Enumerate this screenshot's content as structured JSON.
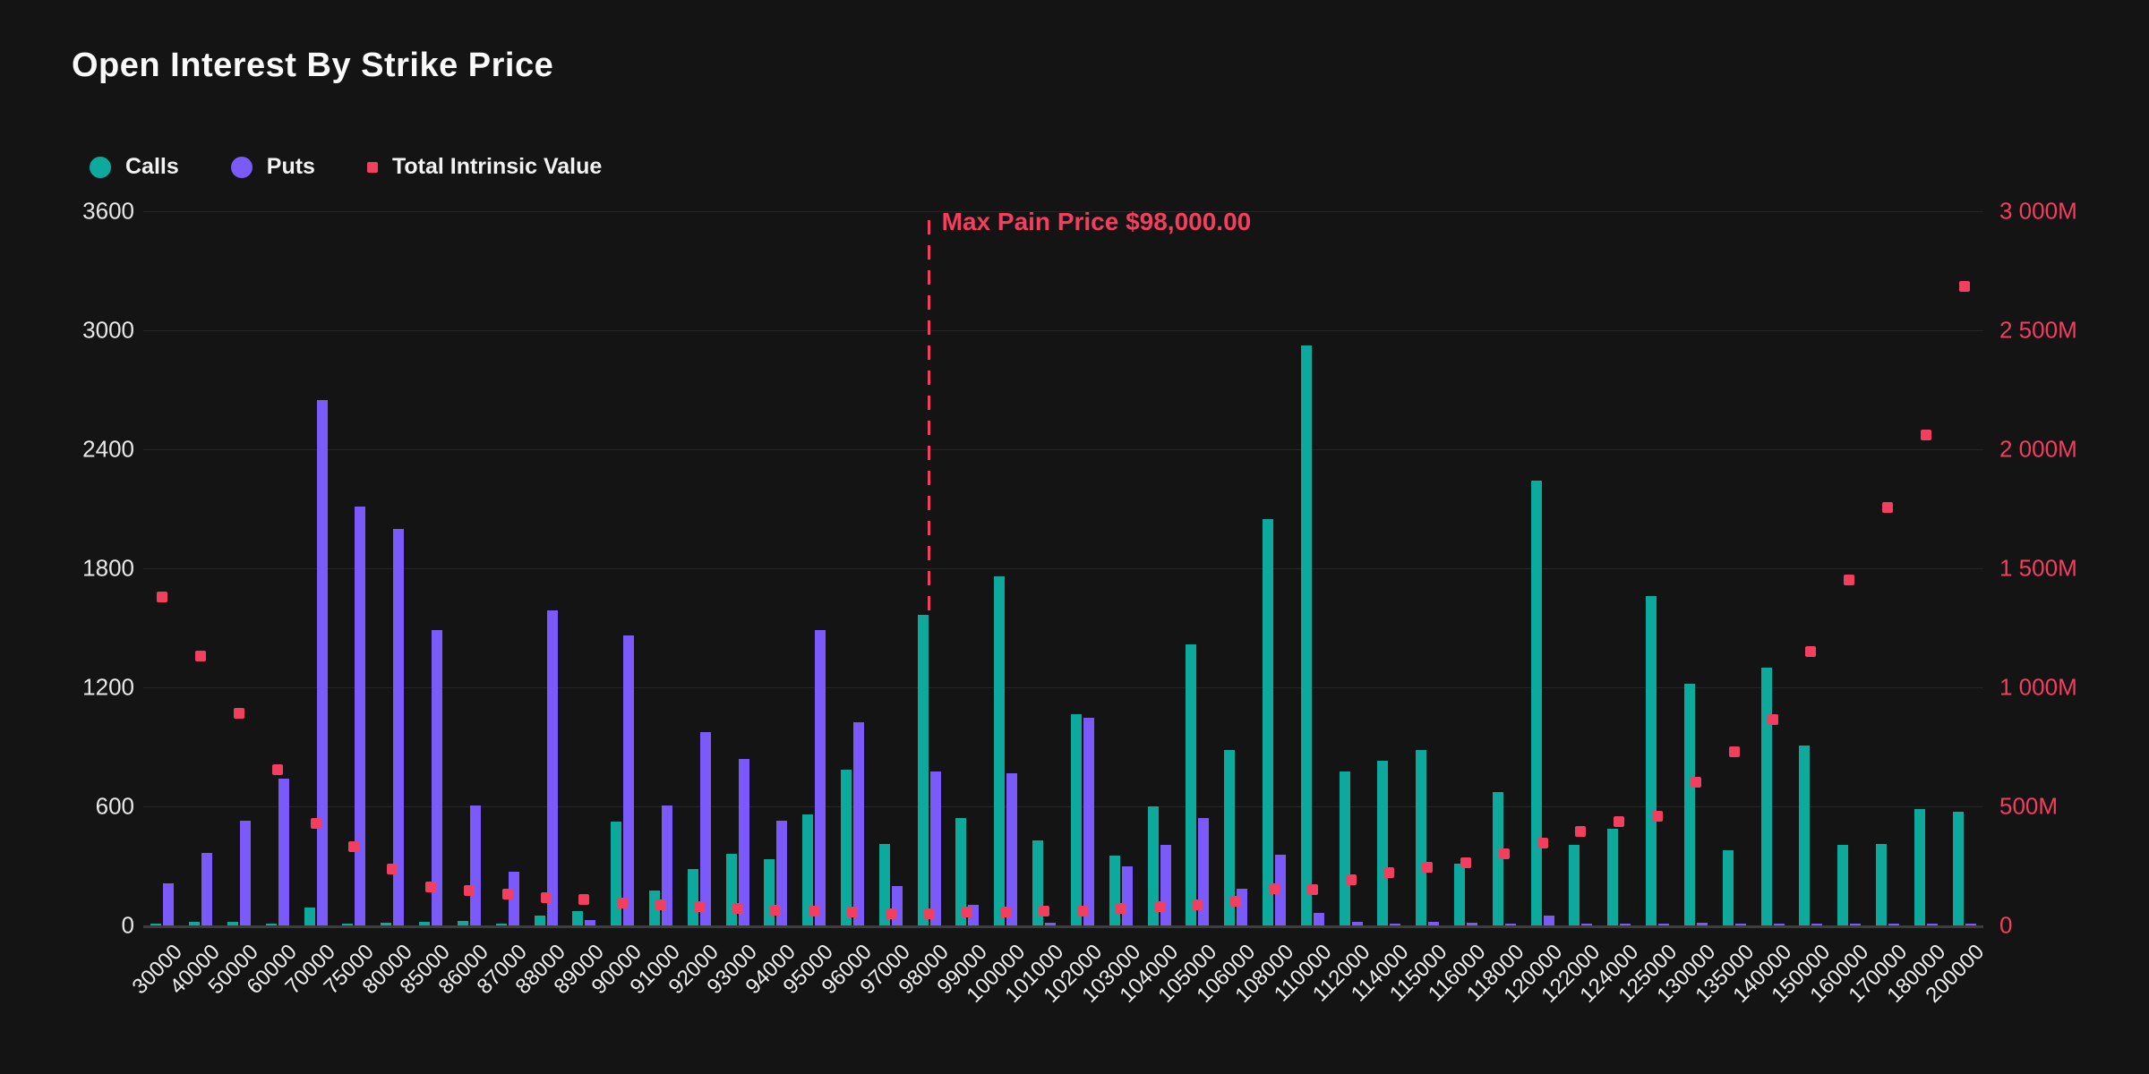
{
  "title": "Open Interest By Strike Price",
  "legend": {
    "calls_label": "Calls",
    "puts_label": "Puts",
    "intrinsic_label": "Total Intrinsic Value"
  },
  "colors": {
    "background": "#141414",
    "calls": "#0ca99c",
    "puts": "#7a5af8",
    "intrinsic": "#f23e5f",
    "gridline": "#262626",
    "axis_line": "#3d3d3d",
    "text": "#f2f2f2"
  },
  "annotation": {
    "label": "Max Pain Price $98,000.00",
    "strike": "98000"
  },
  "chart_data": {
    "type": "combo",
    "subtypes": [
      "bar",
      "bar",
      "scatter"
    ],
    "categories": [
      "30000",
      "40000",
      "50000",
      "60000",
      "70000",
      "75000",
      "80000",
      "85000",
      "86000",
      "87000",
      "88000",
      "89000",
      "90000",
      "91000",
      "92000",
      "93000",
      "94000",
      "95000",
      "96000",
      "97000",
      "98000",
      "99000",
      "100000",
      "101000",
      "102000",
      "103000",
      "104000",
      "105000",
      "106000",
      "108000",
      "110000",
      "112000",
      "114000",
      "115000",
      "116000",
      "118000",
      "120000",
      "122000",
      "124000",
      "125000",
      "130000",
      "135000",
      "140000",
      "150000",
      "160000",
      "170000",
      "180000",
      "200000"
    ],
    "series": [
      {
        "name": "Calls",
        "axis": "left",
        "type": "bar",
        "values": [
          10,
          20,
          18,
          5,
          90,
          5,
          15,
          18,
          22,
          10,
          50,
          70,
          525,
          175,
          285,
          360,
          335,
          560,
          785,
          410,
          1565,
          540,
          1760,
          430,
          1065,
          350,
          600,
          1415,
          885,
          2050,
          2925,
          775,
          830,
          885,
          310,
          670,
          2240,
          405,
          485,
          1660,
          1220,
          380,
          1300,
          905,
          405,
          410,
          585,
          575
        ]
      },
      {
        "name": "Puts",
        "axis": "left",
        "type": "bar",
        "values": [
          210,
          365,
          530,
          740,
          2650,
          2110,
          2000,
          1490,
          605,
          270,
          1590,
          25,
          1460,
          605,
          975,
          840,
          530,
          1490,
          1025,
          200,
          775,
          105,
          765,
          15,
          1045,
          300,
          405,
          540,
          185,
          355,
          65,
          20,
          10,
          20,
          15,
          10,
          50,
          5,
          5,
          10,
          15,
          5,
          5,
          5,
          5,
          5,
          5,
          5
        ]
      },
      {
        "name": "Total Intrinsic Value",
        "axis": "right",
        "type": "scatter",
        "unit": "M",
        "values": [
          1380,
          1130,
          890,
          655,
          430,
          330,
          235,
          160,
          145,
          130,
          115,
          110,
          95,
          85,
          80,
          70,
          65,
          60,
          55,
          50,
          50,
          55,
          55,
          60,
          60,
          70,
          80,
          85,
          100,
          155,
          150,
          190,
          220,
          245,
          265,
          300,
          345,
          395,
          435,
          460,
          600,
          730,
          865,
          1150,
          1450,
          1755,
          2060,
          2685
        ]
      }
    ],
    "left_axis": {
      "min": 0,
      "max": 3600,
      "tick_step": 600,
      "tick_labels": [
        "0",
        "600",
        "1200",
        "1800",
        "2400",
        "3000",
        "3600"
      ]
    },
    "right_axis": {
      "min": 0,
      "max": 3000,
      "tick_step": 500,
      "tick_labels": [
        "0",
        "500M",
        "1 000M",
        "1 500M",
        "2 000M",
        "2 500M",
        "3 000M"
      ]
    },
    "grid": true,
    "legend_position": "top-left"
  }
}
